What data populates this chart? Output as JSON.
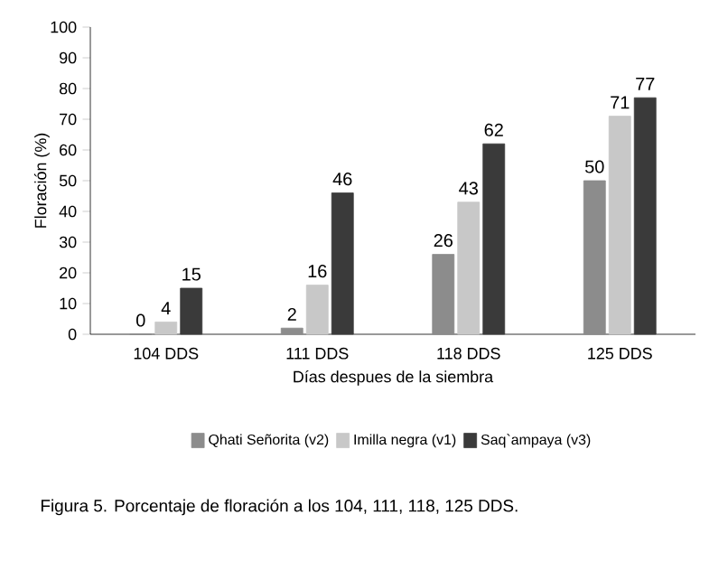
{
  "chart_data": {
    "type": "bar",
    "xlabel": "Días despues de la siembra",
    "ylabel": "Floración (%)",
    "categories": [
      "104 DDS",
      "111 DDS",
      "118 DDS",
      "125 DDS"
    ],
    "series": [
      {
        "name": "Qhati Señorita (v2)",
        "color": "#8c8c8c",
        "values": [
          0,
          2,
          26,
          50
        ]
      },
      {
        "name": "Imilla negra (v1)",
        "color": "#c8c8c8",
        "values": [
          4,
          16,
          43,
          71
        ]
      },
      {
        "name": "Saq`ampaya (v3)",
        "color": "#3a3a3a",
        "values": [
          15,
          46,
          62,
          77
        ]
      }
    ],
    "ylim": [
      0,
      100
    ],
    "yticks": [
      0,
      10,
      20,
      30,
      40,
      50,
      60,
      70,
      80,
      90,
      100
    ],
    "data_labels": true,
    "legend": "bottom",
    "grid": false,
    "annotations": [
      "Figura 5.  Porcentaje de floración a los 104, 111, 118, 125 DDS."
    ]
  }
}
